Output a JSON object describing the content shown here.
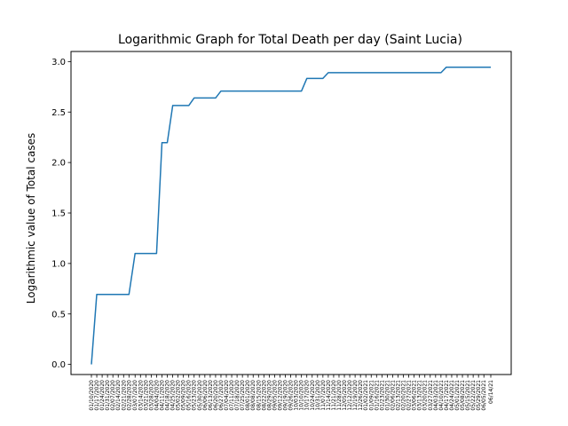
{
  "chart_data": {
    "type": "line",
    "title": "Logarithmic Graph for Total Death per day (Saint Lucia)",
    "xlabel": "",
    "ylabel": "Logarithmic value of Total cases",
    "ylim": [
      -0.1,
      3.1
    ],
    "yticks": [
      0.0,
      0.5,
      1.0,
      1.5,
      2.0,
      2.5,
      3.0
    ],
    "ytick_labels": [
      "0.0",
      "0.5",
      "1.0",
      "1.5",
      "2.0",
      "2.5",
      "3.0"
    ],
    "grid": false,
    "line_color": "#1f77b4",
    "x_start": "01/10/2020",
    "x_end": "06/14/2021",
    "x": [
      "01/10/2020",
      "01/17/2020",
      "01/24/2020",
      "01/31/2020",
      "02/07/2020",
      "02/14/2020",
      "02/21/2020",
      "02/28/2020",
      "03/07/2020",
      "03/14/2020",
      "03/21/2020",
      "03/28/2020",
      "04/04/2020",
      "04/11/2020",
      "04/18/2020",
      "04/25/2020",
      "05/02/2020",
      "05/09/2020",
      "05/16/2020",
      "05/23/2020",
      "05/30/2020",
      "06/06/2020",
      "06/13/2020",
      "06/20/2020",
      "06/27/2020",
      "07/04/2020",
      "07/11/2020",
      "07/18/2020",
      "07/25/2020",
      "08/01/2020",
      "08/08/2020",
      "08/15/2020",
      "08/22/2020",
      "08/29/2020",
      "09/05/2020",
      "09/12/2020",
      "09/19/2020",
      "09/26/2020",
      "10/03/2020",
      "10/10/2020",
      "10/17/2020",
      "10/24/2020",
      "10/31/2020",
      "11/07/2020",
      "11/14/2020",
      "11/21/2020",
      "11/28/2020",
      "12/05/2020",
      "12/12/2020",
      "12/19/2020",
      "12/26/2020",
      "01/02/2021",
      "01/09/2021",
      "01/16/2021",
      "01/23/2021",
      "01/30/2021",
      "02/06/2021",
      "02/13/2021",
      "02/20/2021",
      "02/27/2021",
      "03/06/2021",
      "03/13/2021",
      "03/20/2021",
      "03/27/2021",
      "04/03/2021",
      "04/10/2021",
      "04/17/2021",
      "04/24/2021",
      "05/01/2021",
      "05/08/2021",
      "05/15/2021",
      "05/22/2021",
      "05/29/2021",
      "06/05/2021",
      "06/14/21"
    ],
    "series": [
      {
        "points": [
          {
            "x": "01/10/2020",
            "y": 0.0
          },
          {
            "x": "01/17/2020",
            "y": 0.693
          },
          {
            "x": "02/28/2020",
            "y": 0.693
          },
          {
            "x": "03/07/2020",
            "y": 1.099
          },
          {
            "x": "04/04/2020",
            "y": 1.099
          },
          {
            "x": "04/11/2020",
            "y": 2.197
          },
          {
            "x": "04/18/2020",
            "y": 2.197
          },
          {
            "x": "04/25/2020",
            "y": 2.565
          },
          {
            "x": "05/16/2020",
            "y": 2.565
          },
          {
            "x": "05/23/2020",
            "y": 2.639
          },
          {
            "x": "06/20/2020",
            "y": 2.639
          },
          {
            "x": "06/27/2020",
            "y": 2.708
          },
          {
            "x": "10/10/2020",
            "y": 2.708
          },
          {
            "x": "10/17/2020",
            "y": 2.833
          },
          {
            "x": "11/07/2020",
            "y": 2.833
          },
          {
            "x": "11/14/2020",
            "y": 2.89
          },
          {
            "x": "04/10/2021",
            "y": 2.89
          },
          {
            "x": "04/17/2021",
            "y": 2.944
          },
          {
            "x": "06/14/21",
            "y": 2.944
          }
        ]
      }
    ]
  }
}
